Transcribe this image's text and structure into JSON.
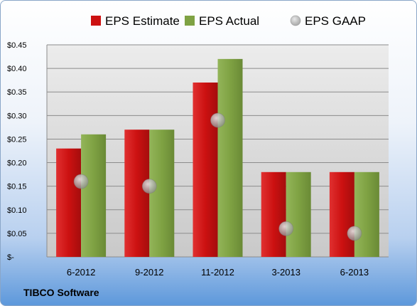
{
  "company": "TIBCO Software",
  "chart_data": {
    "type": "bar",
    "categories": [
      "6-2012",
      "9-2012",
      "11-2012",
      "3-2013",
      "6-2013"
    ],
    "series": [
      {
        "name": "EPS Estimate",
        "kind": "bar",
        "color": "#cc1111",
        "values": [
          0.23,
          0.27,
          0.37,
          0.18,
          0.18
        ]
      },
      {
        "name": "EPS Actual",
        "kind": "bar",
        "color": "#7fa243",
        "values": [
          0.26,
          0.27,
          0.42,
          0.18,
          0.18
        ]
      },
      {
        "name": "EPS GAAP",
        "kind": "marker",
        "color": "#9a9a9a",
        "values": [
          0.16,
          0.15,
          0.29,
          0.06,
          0.05
        ]
      }
    ],
    "yticks": [
      "$-",
      "$0.05",
      "$0.10",
      "$0.15",
      "$0.20",
      "$0.25",
      "$0.30",
      "$0.35",
      "$0.40",
      "$0.45"
    ],
    "ylim": [
      0,
      0.45
    ],
    "grid": true,
    "legend_position": "top"
  }
}
